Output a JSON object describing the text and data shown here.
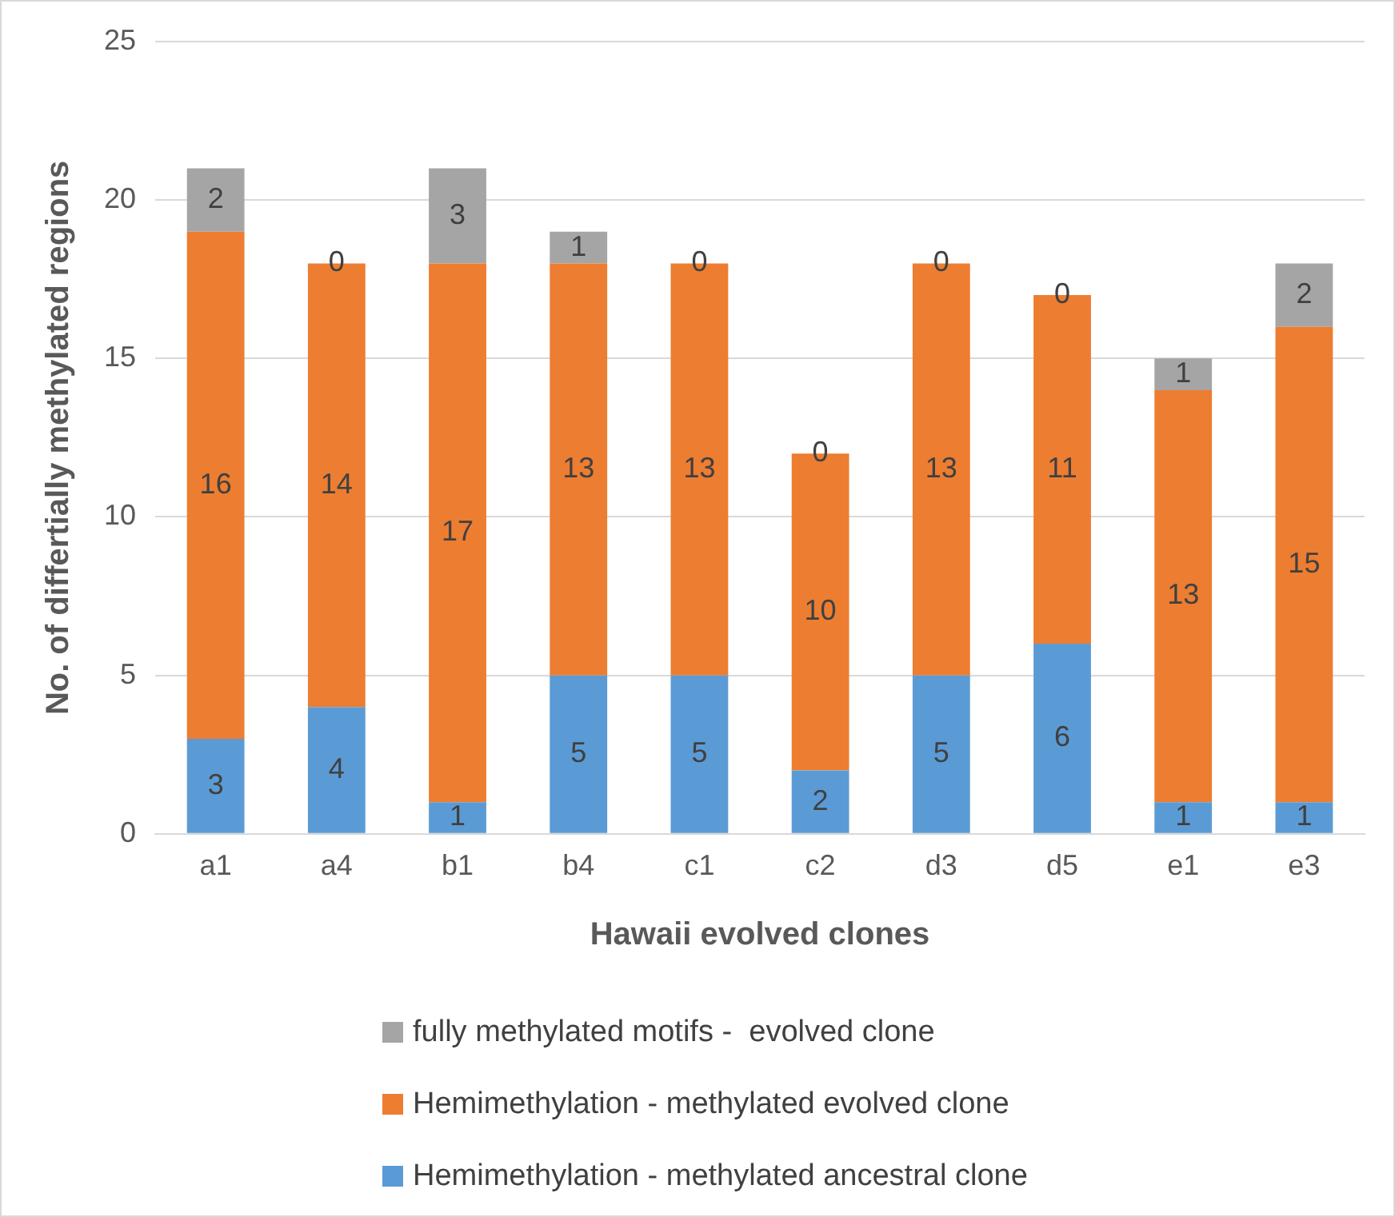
{
  "chart_data": {
    "type": "bar",
    "stacked": true,
    "xlabel": "Hawaii evolved clones",
    "ylabel": "No. of differtially methylated regions",
    "categories": [
      "a1",
      "a4",
      "b1",
      "b4",
      "c1",
      "c2",
      "d3",
      "d5",
      "e1",
      "e3"
    ],
    "series": [
      {
        "name": "Hemimethylation - methylated ancestral clone",
        "color": "#5b9bd5",
        "values": [
          3,
          4,
          1,
          5,
          5,
          2,
          5,
          6,
          1,
          1
        ]
      },
      {
        "name": "Hemimethylation - methylated evolved clone",
        "color": "#ed7d31",
        "values": [
          16,
          14,
          17,
          13,
          13,
          10,
          13,
          11,
          13,
          15
        ]
      },
      {
        "name": "fully methylated motifs -  evolved clone",
        "color": "#a5a5a5",
        "values": [
          2,
          0,
          3,
          1,
          0,
          0,
          0,
          0,
          1,
          2
        ]
      }
    ],
    "ylim": [
      0,
      25
    ],
    "yticks": [
      0,
      5,
      10,
      15,
      20,
      25
    ],
    "grid": "y",
    "legend": "bottom",
    "data_labels": true
  }
}
